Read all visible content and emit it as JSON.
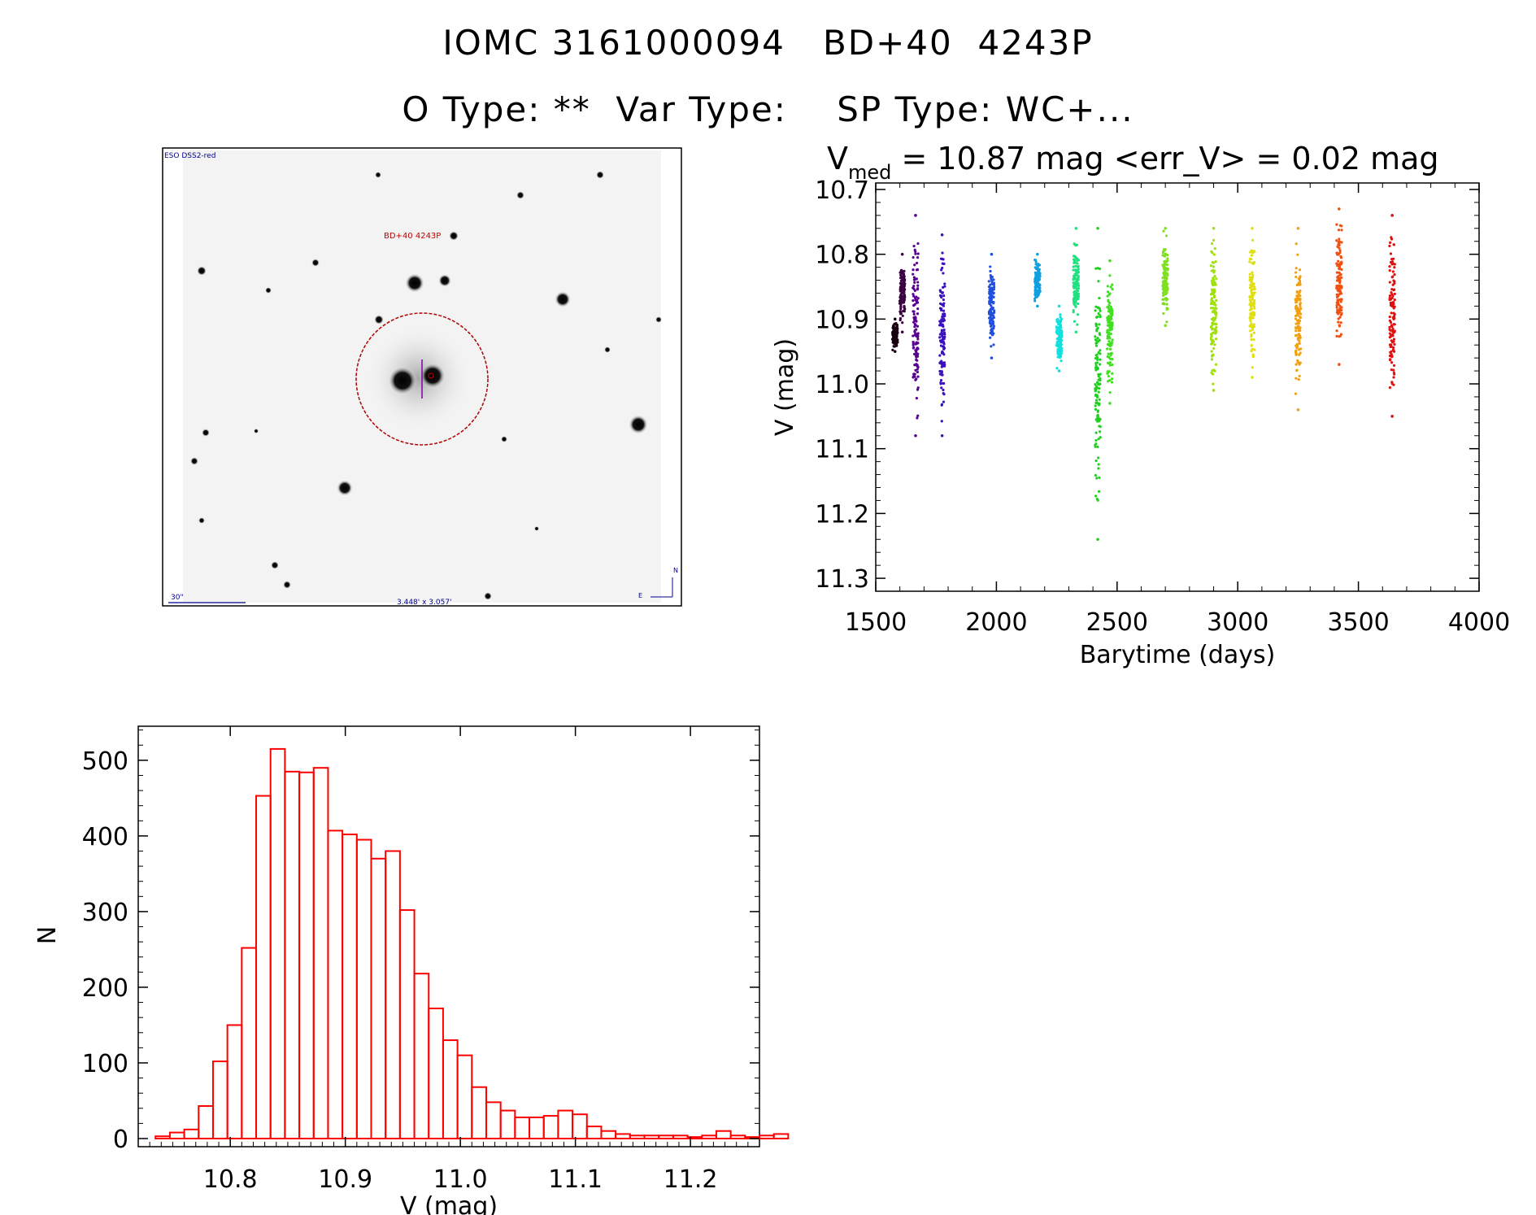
{
  "header": {
    "line1": "IOMC 3161000094   BD+40  4243P",
    "line2": "O Type: **  Var Type:    SP Type: WC+..."
  },
  "finder": {
    "survey_label": "ESO DSS2-red",
    "target_label": "BD+40 4243P",
    "scale_label": "30\"",
    "fov_label": "3.448' x 3.057'",
    "north": "N",
    "east": "E"
  },
  "chart_data": [
    {
      "type": "scatter",
      "title_prefix": "V",
      "title_sub": "med",
      "title_rest": " = 10.87 mag <err_V> = 0.02 mag",
      "xlabel": "Barytime (days)",
      "ylabel": "V (mag)",
      "xlim": [
        1500,
        4000
      ],
      "ylim": [
        11.32,
        10.69
      ],
      "xticks": [
        "1500",
        "2000",
        "2500",
        "3000",
        "3500",
        "4000"
      ],
      "yticks": [
        "10.7",
        "10.8",
        "10.9",
        "11.0",
        "11.1",
        "11.2",
        "11.3"
      ],
      "series": [
        {
          "name": "s1",
          "color": "#1a0010",
          "x": 1580,
          "ymin": 10.9,
          "ymax": 10.95
        },
        {
          "name": "s2",
          "color": "#3a0040",
          "x": 1610,
          "ymin": 10.8,
          "ymax": 10.92
        },
        {
          "name": "s3",
          "color": "#5a0090",
          "x": 1665,
          "ymin": 10.74,
          "ymax": 11.08
        },
        {
          "name": "s4",
          "color": "#3a10c0",
          "x": 1775,
          "ymin": 10.77,
          "ymax": 11.08
        },
        {
          "name": "s5",
          "color": "#2050e0",
          "x": 1980,
          "ymin": 10.8,
          "ymax": 10.96
        },
        {
          "name": "s6",
          "color": "#10a0e0",
          "x": 2170,
          "ymin": 10.8,
          "ymax": 10.88
        },
        {
          "name": "s7",
          "color": "#10e0e0",
          "x": 2260,
          "ymin": 10.88,
          "ymax": 10.98
        },
        {
          "name": "s8",
          "color": "#20e080",
          "x": 2330,
          "ymin": 10.76,
          "ymax": 10.92
        },
        {
          "name": "s9",
          "color": "#20d020",
          "x": 2420,
          "ymin": 10.76,
          "ymax": 11.24
        },
        {
          "name": "s10",
          "color": "#40e020",
          "x": 2470,
          "ymin": 10.81,
          "ymax": 11.03
        },
        {
          "name": "s11",
          "color": "#80e020",
          "x": 2700,
          "ymin": 10.76,
          "ymax": 10.91
        },
        {
          "name": "s12",
          "color": "#a0e010",
          "x": 2900,
          "ymin": 10.76,
          "ymax": 11.01
        },
        {
          "name": "s13",
          "color": "#e0e010",
          "x": 3060,
          "ymin": 10.76,
          "ymax": 10.99
        },
        {
          "name": "s14",
          "color": "#f0a010",
          "x": 3250,
          "ymin": 10.76,
          "ymax": 11.04
        },
        {
          "name": "s15",
          "color": "#f05010",
          "x": 3420,
          "ymin": 10.73,
          "ymax": 10.97
        },
        {
          "name": "s16",
          "color": "#e01010",
          "x": 3640,
          "ymin": 10.74,
          "ymax": 11.05
        }
      ]
    },
    {
      "type": "bar",
      "xlabel": "V (mag)",
      "ylabel": "N",
      "xlim": [
        10.72,
        11.26
      ],
      "ylim": [
        0,
        545
      ],
      "xticks": [
        "10.8",
        "10.9",
        "11.0",
        "11.1",
        "11.2"
      ],
      "yticks": [
        "0",
        "100",
        "200",
        "300",
        "400",
        "500"
      ],
      "bin_start": 10.735,
      "bin_width": 0.0125,
      "values": [
        3,
        8,
        12,
        43,
        102,
        150,
        252,
        453,
        515,
        485,
        484,
        490,
        407,
        402,
        395,
        370,
        380,
        302,
        218,
        172,
        130,
        110,
        68,
        48,
        37,
        28,
        28,
        30,
        37,
        32,
        16,
        10,
        6,
        4,
        4,
        4,
        4,
        2,
        4,
        10,
        4,
        2,
        4,
        6
      ]
    }
  ]
}
